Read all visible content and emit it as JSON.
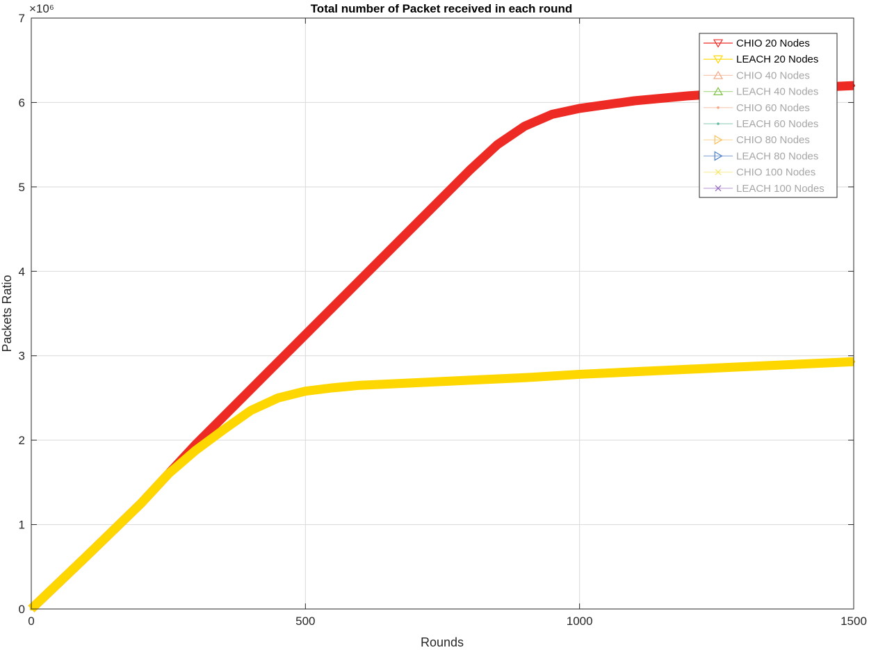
{
  "chart_data": {
    "type": "line",
    "title": "Total number of Packet received in each round",
    "xlabel": "Rounds",
    "ylabel": "Packets Ratio",
    "y_exponent_label": "×10⁶",
    "xlim": [
      0,
      1500
    ],
    "ylim": [
      0,
      7
    ],
    "xticks": [
      0,
      500,
      1000,
      1500
    ],
    "yticks": [
      0,
      1,
      2,
      3,
      4,
      5,
      6,
      7
    ],
    "grid": true,
    "legend_position": "top-right",
    "series": [
      {
        "name": "CHIO 20 Nodes",
        "color": "#ee2a24",
        "marker": "triangle-down",
        "active": true,
        "x": [
          0,
          100,
          200,
          250,
          300,
          400,
          500,
          600,
          700,
          800,
          850,
          900,
          950,
          1000,
          1100,
          1200,
          1300,
          1400,
          1500
        ],
        "y": [
          0,
          0.62,
          1.25,
          1.6,
          1.95,
          2.6,
          3.25,
          3.9,
          4.55,
          5.2,
          5.5,
          5.72,
          5.86,
          5.93,
          6.02,
          6.08,
          6.12,
          6.17,
          6.2
        ]
      },
      {
        "name": "LEACH 20 Nodes",
        "color": "#ffd700",
        "marker": "triangle-down",
        "active": true,
        "x": [
          0,
          100,
          200,
          250,
          300,
          350,
          400,
          450,
          500,
          550,
          600,
          700,
          800,
          900,
          1000,
          1100,
          1200,
          1300,
          1400,
          1500
        ],
        "y": [
          0,
          0.62,
          1.25,
          1.6,
          1.88,
          2.12,
          2.35,
          2.5,
          2.58,
          2.62,
          2.65,
          2.68,
          2.71,
          2.74,
          2.78,
          2.81,
          2.84,
          2.87,
          2.9,
          2.93
        ]
      },
      {
        "name": "CHIO 40 Nodes",
        "color": "#f4a582",
        "marker": "triangle-up",
        "active": false,
        "x": [],
        "y": []
      },
      {
        "name": "LEACH 40 Nodes",
        "color": "#7dc242",
        "marker": "triangle-up",
        "active": false,
        "x": [],
        "y": []
      },
      {
        "name": "CHIO 60 Nodes",
        "color": "#f4a582",
        "marker": "dot",
        "active": false,
        "x": [],
        "y": []
      },
      {
        "name": "LEACH 60 Nodes",
        "color": "#5fb8a0",
        "marker": "dot",
        "active": false,
        "x": [],
        "y": []
      },
      {
        "name": "CHIO 80 Nodes",
        "color": "#f7c15b",
        "marker": "triangle-right",
        "active": false,
        "x": [],
        "y": []
      },
      {
        "name": "LEACH 80 Nodes",
        "color": "#4a7bc8",
        "marker": "triangle-right",
        "active": false,
        "x": [],
        "y": []
      },
      {
        "name": "CHIO 100 Nodes",
        "color": "#f6e56b",
        "marker": "x",
        "active": false,
        "x": [],
        "y": []
      },
      {
        "name": "LEACH 100 Nodes",
        "color": "#9467bd",
        "marker": "x",
        "active": false,
        "x": [],
        "y": []
      }
    ]
  }
}
